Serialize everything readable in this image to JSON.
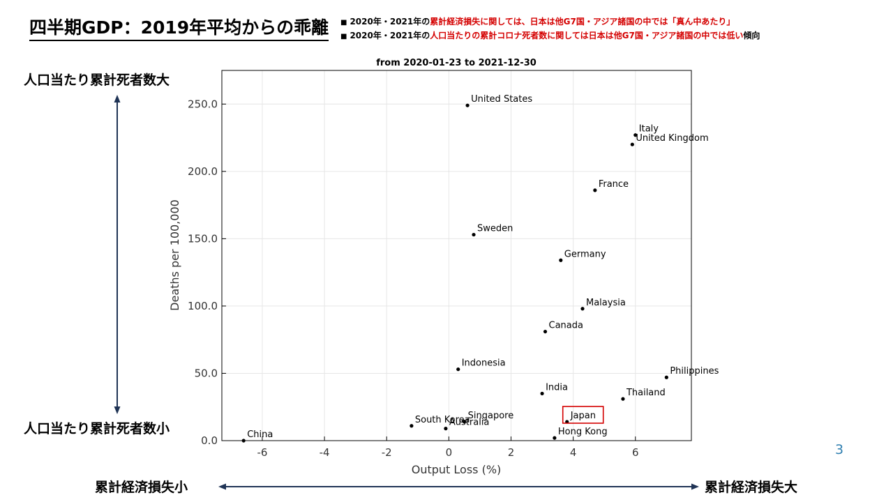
{
  "slide": {
    "title": "四半期GDP：2019年平均からの乖離",
    "bullets": [
      {
        "marker": "■",
        "parts": [
          {
            "text": "2020年・2021年の",
            "red": false
          },
          {
            "text": "累計経済損失に関しては、日本は他G7国・アジア諸国の中では「真ん中あたり」",
            "red": true
          }
        ]
      },
      {
        "marker": "■",
        "parts": [
          {
            "text": "2020年・2021年の",
            "red": false
          },
          {
            "text": "人口当たりの累計コロナ死者数に関しては日本は他G7国・アジア諸国の中では低い",
            "red": true
          },
          {
            "text": "傾向",
            "red": false
          }
        ]
      }
    ],
    "y_top_label": "人口当たり累計死者数大",
    "y_bottom_label": "人口当たり累計死者数小",
    "x_left_label": "累計経済損失小",
    "x_right_label": "累計経済損失大",
    "page_number": "3",
    "arrow_color": "#1f3355",
    "highlight_color": "#d40000"
  },
  "chart_data": {
    "type": "scatter",
    "title": "from 2020-01-23 to 2021-12-30",
    "xlabel": "Output Loss (%)",
    "ylabel": "Deaths per 100,000",
    "xlim": [
      -7.3,
      7.8
    ],
    "ylim": [
      0,
      275
    ],
    "xticks": [
      -6,
      -4,
      -2,
      0,
      2,
      4,
      6
    ],
    "yticks": [
      0,
      50,
      100,
      150,
      200,
      250
    ],
    "ytick_format": "one-decimal",
    "grid": true,
    "highlight": "Japan",
    "points": [
      {
        "label": "United States",
        "x": 0.6,
        "y": 249
      },
      {
        "label": "Italy",
        "x": 6.0,
        "y": 227
      },
      {
        "label": "United Kingdom",
        "x": 5.9,
        "y": 220
      },
      {
        "label": "France",
        "x": 4.7,
        "y": 186
      },
      {
        "label": "Sweden",
        "x": 0.8,
        "y": 153
      },
      {
        "label": "Germany",
        "x": 3.6,
        "y": 134
      },
      {
        "label": "Malaysia",
        "x": 4.3,
        "y": 98
      },
      {
        "label": "Canada",
        "x": 3.1,
        "y": 81
      },
      {
        "label": "Indonesia",
        "x": 0.3,
        "y": 53
      },
      {
        "label": "Philippines",
        "x": 7.0,
        "y": 47
      },
      {
        "label": "India",
        "x": 3.0,
        "y": 35
      },
      {
        "label": "Thailand",
        "x": 5.6,
        "y": 31
      },
      {
        "label": "Japan",
        "x": 3.8,
        "y": 14
      },
      {
        "label": "South Korea",
        "x": -1.2,
        "y": 11
      },
      {
        "label": "Singapore",
        "x": 0.5,
        "y": 14
      },
      {
        "label": "Australia",
        "x": -0.1,
        "y": 9
      },
      {
        "label": "Hong Kong",
        "x": 3.4,
        "y": 2
      },
      {
        "label": "China",
        "x": -6.6,
        "y": 0
      }
    ]
  }
}
